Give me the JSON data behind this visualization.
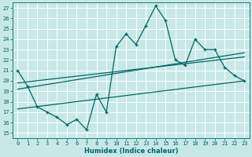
{
  "xlabel": "Humidex (Indice chaleur)",
  "ylabel": "",
  "bg_color": "#c8e8e8",
  "grid_color": "#ffffff",
  "line_color": "#006666",
  "xlim": [
    -0.5,
    23.5
  ],
  "ylim": [
    14.5,
    27.5
  ],
  "yticks": [
    15,
    16,
    17,
    18,
    19,
    20,
    21,
    22,
    23,
    24,
    25,
    26,
    27
  ],
  "xticks": [
    0,
    1,
    2,
    3,
    4,
    5,
    6,
    7,
    8,
    9,
    10,
    11,
    12,
    13,
    14,
    15,
    16,
    17,
    18,
    19,
    20,
    21,
    22,
    23
  ],
  "zigzag_x": [
    0,
    1,
    2,
    3,
    4,
    5,
    6,
    7,
    8,
    9,
    10,
    11,
    12,
    13,
    14,
    15,
    16,
    17,
    18,
    19,
    20,
    21,
    22,
    23
  ],
  "zigzag_y": [
    21.0,
    19.5,
    17.5,
    17.0,
    16.5,
    15.8,
    16.3,
    15.3,
    18.7,
    17.0,
    23.3,
    24.5,
    23.5,
    25.3,
    27.2,
    25.8,
    22.0,
    21.5,
    24.0,
    23.0,
    23.0,
    21.3,
    20.5,
    20.0
  ],
  "line1_x": [
    0,
    23
  ],
  "line1_y": [
    19.8,
    22.3
  ],
  "line2_x": [
    0,
    23
  ],
  "line2_y": [
    19.2,
    22.7
  ],
  "line3_x": [
    0,
    23
  ],
  "line3_y": [
    17.3,
    20.0
  ]
}
